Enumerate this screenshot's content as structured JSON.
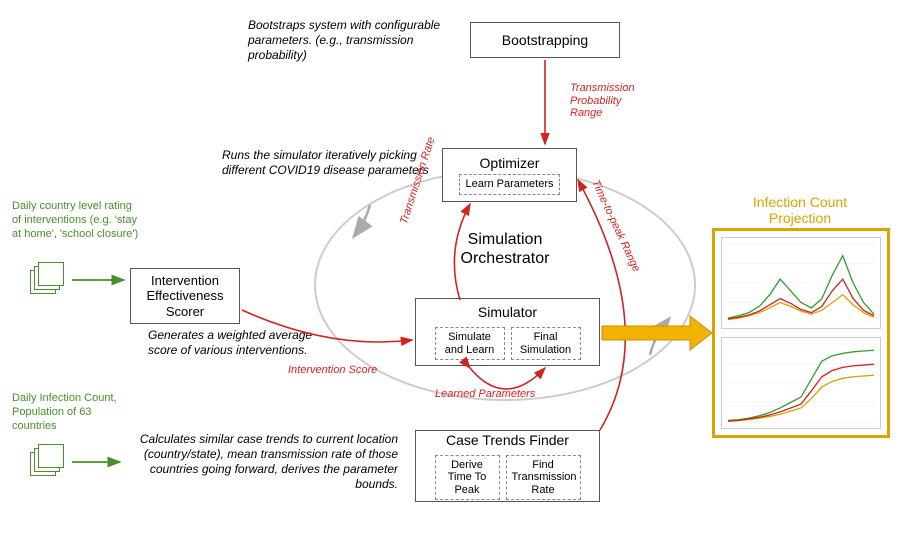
{
  "colors": {
    "red": "#d22222",
    "green": "#4a8f2e",
    "gold": "#d9a400",
    "gray": "#aaaaaa",
    "black": "#222222"
  },
  "nodes": {
    "bootstrap": {
      "title": "Bootstrapping"
    },
    "optimizer": {
      "title": "Optimizer",
      "sub": "Learn Parameters"
    },
    "simulator": {
      "title": "Simulator",
      "sub_left": "Simulate and Learn",
      "sub_right": "Final Simulation"
    },
    "case_trends": {
      "title": "Case Trends Finder",
      "sub_left": "Derive Time To Peak",
      "sub_right": "Find Transmission Rate"
    },
    "intervention": {
      "title": "Intervention Effectiveness Scorer"
    }
  },
  "orchestrator": "Simulation\nOrchestrator",
  "annotations": {
    "bootstrap": "Bootstraps system with configurable parameters. (e.g., transmission probability)",
    "optimizer": "Runs the simulator iteratively picking different COVID19 disease parameters",
    "intervention": "Generates a weighted average score of various interventions.",
    "case_trends": "Calculates similar case trends to current location (country/state), mean transmission rate of those countries going forward, derives the parameter bounds."
  },
  "edge_labels": {
    "trans_prob": "Transmission Probability Range",
    "trans_rate": "Transmission Rate",
    "time_peak": "Time-to-peak Range",
    "interv_score": "Intervention Score",
    "learned": "Learned Parameters"
  },
  "inputs": {
    "interventions": "Daily country level rating of interventions (e.g. 'stay at home', 'school closure')",
    "infection": "Daily Infection Count, Population of 63 countries"
  },
  "projection": {
    "title": "Infection Count Projection",
    "chart1": {
      "x": [
        0,
        1,
        2,
        3,
        4,
        5,
        6,
        7,
        8,
        9,
        10,
        11,
        12,
        13,
        14
      ],
      "series": [
        {
          "color": "#2e9e2e",
          "y": [
            5,
            8,
            12,
            20,
            35,
            55,
            40,
            25,
            18,
            30,
            60,
            85,
            50,
            25,
            10
          ]
        },
        {
          "color": "#d9a400",
          "y": [
            3,
            5,
            8,
            12,
            18,
            25,
            20,
            14,
            10,
            15,
            25,
            35,
            22,
            12,
            6
          ]
        },
        {
          "color": "#d22222",
          "y": [
            4,
            6,
            9,
            14,
            22,
            30,
            24,
            16,
            12,
            20,
            40,
            55,
            30,
            15,
            8
          ]
        }
      ],
      "ymax": 100
    },
    "chart2": {
      "x": [
        0,
        1,
        2,
        3,
        4,
        5,
        6,
        7,
        8,
        9,
        10,
        11,
        12,
        13,
        14
      ],
      "series": [
        {
          "color": "#2e9e2e",
          "y": [
            2,
            3,
            5,
            8,
            12,
            18,
            25,
            32,
            55,
            78,
            85,
            88,
            90,
            91,
            92
          ]
        },
        {
          "color": "#d9a400",
          "y": [
            1,
            2,
            3,
            5,
            7,
            10,
            14,
            18,
            30,
            45,
            52,
            56,
            58,
            59,
            60
          ]
        },
        {
          "color": "#d22222",
          "y": [
            1,
            2,
            4,
            6,
            9,
            13,
            18,
            23,
            40,
            58,
            66,
            70,
            72,
            73,
            74
          ]
        }
      ],
      "ymax": 100
    }
  }
}
